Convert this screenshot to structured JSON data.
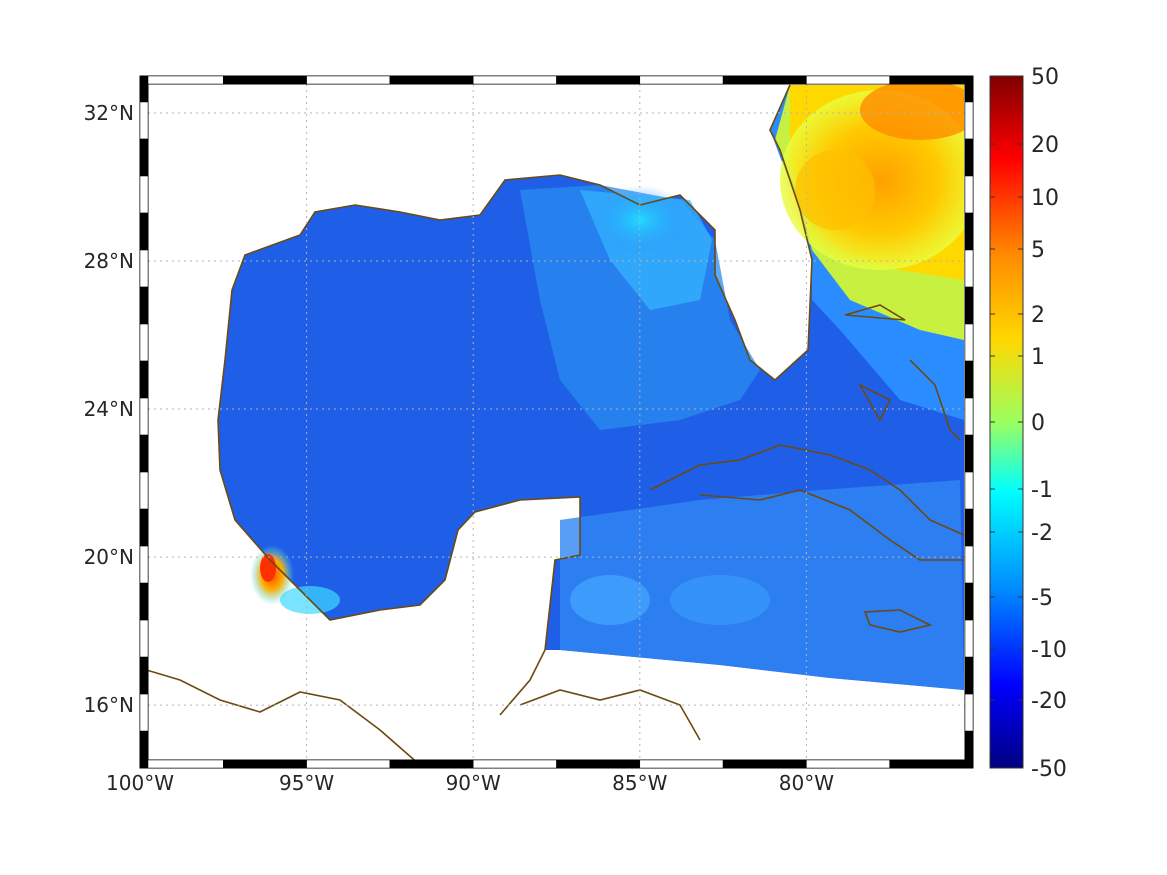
{
  "map": {
    "lon_range": [
      -100,
      -75
    ],
    "lat_range": [
      14.3,
      33
    ],
    "x_ticks": [
      {
        "value": -100,
        "label": "100°W"
      },
      {
        "value": -95,
        "label": "95°W"
      },
      {
        "value": -90,
        "label": "90°W"
      },
      {
        "value": -85,
        "label": "85°W"
      },
      {
        "value": -80,
        "label": "80°W"
      }
    ],
    "y_ticks": [
      {
        "value": 32,
        "label": "32°N"
      },
      {
        "value": 28,
        "label": "28°N"
      },
      {
        "value": 24,
        "label": "24°N"
      },
      {
        "value": 20,
        "label": "20°N"
      },
      {
        "value": 16,
        "label": "16°N"
      }
    ],
    "grid": true,
    "frame_style": "alternating black/white border",
    "coastline_color": "#6b4a12",
    "ocean_background_color": "#1f57e8"
  },
  "colorbar": {
    "placement": "right",
    "ticks": [
      "50",
      "20",
      "10",
      "5",
      "2",
      "1",
      "0",
      "-1",
      "-2",
      "-5",
      "-10",
      "-20",
      "-50"
    ],
    "colormap": [
      "#800000",
      "#ff0000",
      "#ff8000",
      "#ffff00",
      "#80ff80",
      "#00ffff",
      "#0080ff",
      "#0000ff",
      "#000080"
    ]
  }
}
